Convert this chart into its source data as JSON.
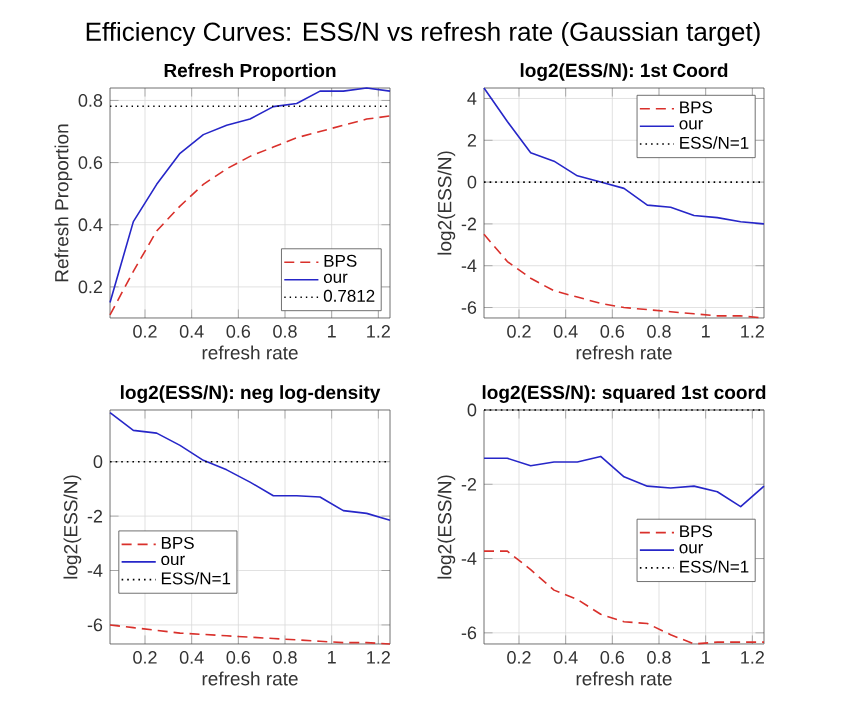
{
  "chart_data": [
    {
      "type": "line",
      "title": "Refresh Proportion",
      "xlabel": "refresh rate",
      "ylabel": "Refresh Proportion",
      "annotations": [
        "Efficiency Curves: ESS/N vs refresh rate (Gaussian target)"
      ],
      "x": [
        0.05,
        0.15,
        0.25,
        0.35,
        0.45,
        0.55,
        0.65,
        0.75,
        0.85,
        0.95,
        1.05,
        1.15,
        1.25
      ],
      "series": [
        {
          "name": "BPS",
          "color": "#d9302b",
          "line_style": "dashed",
          "values": [
            0.11,
            0.25,
            0.38,
            0.46,
            0.53,
            0.58,
            0.62,
            0.65,
            0.68,
            0.7,
            0.72,
            0.74,
            0.75
          ]
        },
        {
          "name": "our",
          "color": "#2626c8",
          "line_style": "solid",
          "values": [
            0.15,
            0.41,
            0.53,
            0.63,
            0.69,
            0.72,
            0.74,
            0.78,
            0.79,
            0.83,
            0.83,
            0.84,
            0.83
          ]
        }
      ],
      "ref_lines": [
        {
          "axis": "y",
          "value": 0.7812,
          "label": "0.7812",
          "color": "#000000",
          "line_style": "dotted"
        }
      ],
      "xlim": [
        0.05,
        1.25
      ],
      "ylim": [
        0.1,
        0.84
      ],
      "xticks": [
        0.2,
        0.4,
        0.6,
        0.8,
        1,
        1.2
      ],
      "yticks": [
        0.2,
        0.4,
        0.6,
        0.8
      ],
      "grid": true,
      "legend": "bottom right"
    },
    {
      "type": "line",
      "title": "log2(ESS/N): 1st Coord",
      "xlabel": "refresh rate",
      "ylabel": "log2(ESS/N)",
      "x": [
        0.05,
        0.15,
        0.25,
        0.35,
        0.45,
        0.55,
        0.65,
        0.75,
        0.85,
        0.95,
        1.05,
        1.15,
        1.25
      ],
      "series": [
        {
          "name": "BPS",
          "color": "#d9302b",
          "line_style": "dashed",
          "values": [
            -2.5,
            -3.8,
            -4.6,
            -5.2,
            -5.5,
            -5.8,
            -6.0,
            -6.1,
            -6.2,
            -6.3,
            -6.4,
            -6.4,
            -6.5
          ]
        },
        {
          "name": "our",
          "color": "#2626c8",
          "line_style": "solid",
          "values": [
            4.5,
            2.9,
            1.4,
            1.0,
            0.3,
            0.0,
            -0.3,
            -1.1,
            -1.2,
            -1.6,
            -1.7,
            -1.9,
            -2.0
          ]
        },
        {
          "name": "ESS/N=1",
          "color": "#000000",
          "line_style": "dotted",
          "values": [
            0,
            0,
            0,
            0,
            0,
            0,
            0,
            0,
            0,
            0,
            0,
            0,
            0
          ]
        }
      ],
      "xlim": [
        0.05,
        1.25
      ],
      "ylim": [
        -6.5,
        4.5
      ],
      "xticks": [
        0.2,
        0.4,
        0.6,
        0.8,
        1,
        1.2
      ],
      "yticks": [
        -6,
        -4,
        -2,
        0,
        2,
        4
      ],
      "grid": true,
      "legend": "top right"
    },
    {
      "type": "line",
      "title": "log2(ESS/N): neg log-density",
      "xlabel": "refresh rate",
      "ylabel": "log2(ESS/N)",
      "x": [
        0.05,
        0.15,
        0.25,
        0.35,
        0.45,
        0.55,
        0.65,
        0.75,
        0.85,
        0.95,
        1.05,
        1.15,
        1.25
      ],
      "series": [
        {
          "name": "BPS",
          "color": "#d9302b",
          "line_style": "dashed",
          "values": [
            -6.0,
            -6.1,
            -6.2,
            -6.3,
            -6.35,
            -6.4,
            -6.45,
            -6.5,
            -6.55,
            -6.6,
            -6.65,
            -6.65,
            -6.7
          ]
        },
        {
          "name": "our",
          "color": "#2626c8",
          "line_style": "solid",
          "values": [
            1.8,
            1.15,
            1.05,
            0.6,
            0.05,
            -0.3,
            -0.75,
            -1.25,
            -1.25,
            -1.3,
            -1.8,
            -1.9,
            -2.15
          ]
        },
        {
          "name": "ESS/N=1",
          "color": "#000000",
          "line_style": "dotted",
          "values": [
            0,
            0,
            0,
            0,
            0,
            0,
            0,
            0,
            0,
            0,
            0,
            0,
            0
          ]
        }
      ],
      "xlim": [
        0.05,
        1.25
      ],
      "ylim": [
        -6.7,
        1.9
      ],
      "xticks": [
        0.2,
        0.4,
        0.6,
        0.8,
        1,
        1.2
      ],
      "yticks": [
        -6,
        -4,
        -2,
        0
      ],
      "grid": true,
      "legend": "left"
    },
    {
      "type": "line",
      "title": "log2(ESS/N): squared 1st coord",
      "xlabel": "refresh rate",
      "ylabel": "log2(ESS/N)",
      "x": [
        0.05,
        0.15,
        0.25,
        0.35,
        0.45,
        0.55,
        0.65,
        0.75,
        0.85,
        0.95,
        1.05,
        1.15,
        1.25
      ],
      "series": [
        {
          "name": "BPS",
          "color": "#d9302b",
          "line_style": "dashed",
          "values": [
            -3.8,
            -3.8,
            -4.3,
            -4.85,
            -5.1,
            -5.5,
            -5.7,
            -5.75,
            -6.05,
            -6.3,
            -6.25,
            -6.25,
            -6.25
          ]
        },
        {
          "name": "our",
          "color": "#2626c8",
          "line_style": "solid",
          "values": [
            -1.3,
            -1.3,
            -1.5,
            -1.4,
            -1.4,
            -1.25,
            -1.8,
            -2.05,
            -2.1,
            -2.05,
            -2.2,
            -2.6,
            -2.05
          ]
        },
        {
          "name": "ESS/N=1",
          "color": "#000000",
          "line_style": "dotted",
          "values": [
            0,
            0,
            0,
            0,
            0,
            0,
            0,
            0,
            0,
            0,
            0,
            0,
            0
          ]
        }
      ],
      "xlim": [
        0.05,
        1.25
      ],
      "ylim": [
        -6.3,
        0
      ],
      "xticks": [
        0.2,
        0.4,
        0.6,
        0.8,
        1,
        1.2
      ],
      "yticks": [
        -6,
        -4,
        -2,
        0
      ],
      "grid": true,
      "legend": "right"
    }
  ]
}
